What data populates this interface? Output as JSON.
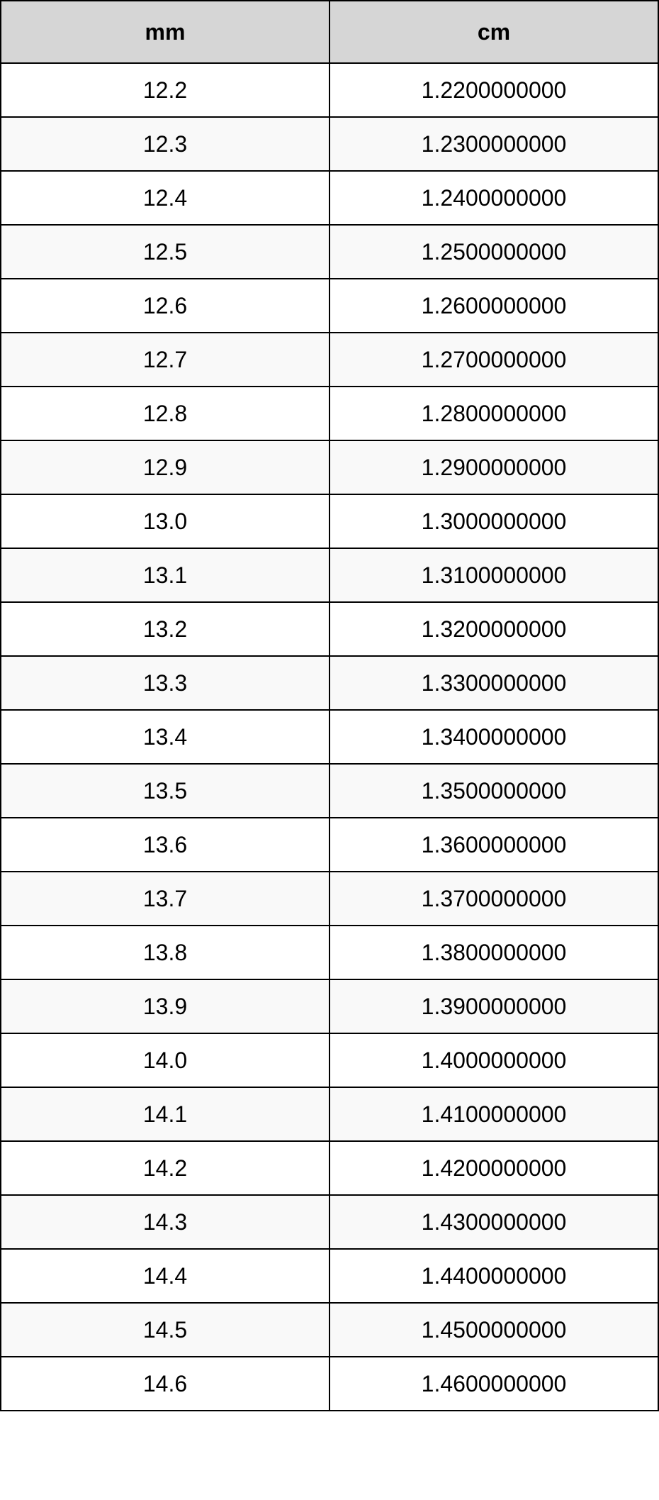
{
  "table": {
    "header_bg": "#d6d6d6",
    "row_bg_odd": "#ffffff",
    "row_bg_even": "#f9f9f9",
    "columns": [
      "mm",
      "cm"
    ],
    "rows": [
      [
        "12.2",
        "1.2200000000"
      ],
      [
        "12.3",
        "1.2300000000"
      ],
      [
        "12.4",
        "1.2400000000"
      ],
      [
        "12.5",
        "1.2500000000"
      ],
      [
        "12.6",
        "1.2600000000"
      ],
      [
        "12.7",
        "1.2700000000"
      ],
      [
        "12.8",
        "1.2800000000"
      ],
      [
        "12.9",
        "1.2900000000"
      ],
      [
        "13.0",
        "1.3000000000"
      ],
      [
        "13.1",
        "1.3100000000"
      ],
      [
        "13.2",
        "1.3200000000"
      ],
      [
        "13.3",
        "1.3300000000"
      ],
      [
        "13.4",
        "1.3400000000"
      ],
      [
        "13.5",
        "1.3500000000"
      ],
      [
        "13.6",
        "1.3600000000"
      ],
      [
        "13.7",
        "1.3700000000"
      ],
      [
        "13.8",
        "1.3800000000"
      ],
      [
        "13.9",
        "1.3900000000"
      ],
      [
        "14.0",
        "1.4000000000"
      ],
      [
        "14.1",
        "1.4100000000"
      ],
      [
        "14.2",
        "1.4200000000"
      ],
      [
        "14.3",
        "1.4300000000"
      ],
      [
        "14.4",
        "1.4400000000"
      ],
      [
        "14.5",
        "1.4500000000"
      ],
      [
        "14.6",
        "1.4600000000"
      ]
    ]
  }
}
